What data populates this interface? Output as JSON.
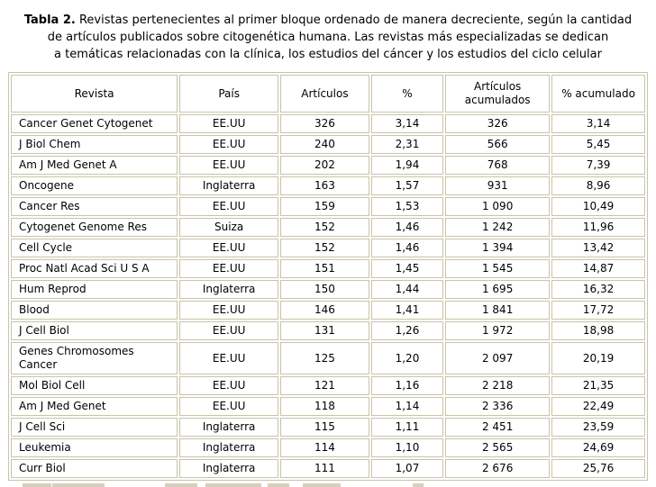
{
  "title": {
    "bold": "Tabla 2.",
    "line1": "Revistas pertenecientes al primer bloque ordenado de manera decreciente, según la cantidad",
    "line2": "de artículos publicados sobre citogenética humana. Las revistas más especializadas se dedican",
    "line3": "a temáticas relacionadas con la clínica, los estudios del cáncer y los estudios del ciclo celular"
  },
  "table": {
    "headers": [
      "Revista",
      "País",
      "Artículos",
      "%",
      "Artículos acumulados",
      "% acumulado"
    ],
    "rows": [
      [
        "Cancer Genet Cytogenet",
        "EE.UU",
        "326",
        "3,14",
        "326",
        "3,14"
      ],
      [
        "J Biol Chem",
        "EE.UU",
        "240",
        "2,31",
        "566",
        "5,45"
      ],
      [
        "Am J Med Genet A",
        "EE.UU",
        "202",
        "1,94",
        "768",
        "7,39"
      ],
      [
        "Oncogene",
        "Inglaterra",
        "163",
        "1,57",
        "931",
        "8,96"
      ],
      [
        "Cancer Res",
        "EE.UU",
        "159",
        "1,53",
        "1 090",
        "10,49"
      ],
      [
        "Cytogenet Genome Res",
        "Suiza",
        "152",
        "1,46",
        "1 242",
        "11,96"
      ],
      [
        "Cell Cycle",
        "EE.UU",
        "152",
        "1,46",
        "1 394",
        "13,42"
      ],
      [
        "Proc Natl Acad Sci U S A",
        "EE.UU",
        "151",
        "1,45",
        "1 545",
        "14,87"
      ],
      [
        "Hum Reprod",
        "Inglaterra",
        "150",
        "1,44",
        "1 695",
        "16,32"
      ],
      [
        "Blood",
        "EE.UU",
        "146",
        "1,41",
        "1 841",
        "17,72"
      ],
      [
        "J Cell Biol",
        "EE.UU",
        "131",
        "1,26",
        "1 972",
        "18,98"
      ],
      [
        "Genes Chromosomes Cancer",
        "EE.UU",
        "125",
        "1,20",
        "2 097",
        "20,19"
      ],
      [
        "Mol Biol Cell",
        "EE.UU",
        "121",
        "1,16",
        "2 218",
        "21,35"
      ],
      [
        "Am J Med Genet",
        "EE.UU",
        "118",
        "1,14",
        "2 336",
        "22,49"
      ],
      [
        "J Cell Sci",
        "Inglaterra",
        "115",
        "1,11",
        "2 451",
        "23,59"
      ],
      [
        "Leukemia",
        "Inglaterra",
        "114",
        "1,10",
        "2 565",
        "24,69"
      ],
      [
        "Curr Biol",
        "Inglaterra",
        "111",
        "1,07",
        "2 676",
        "25,76"
      ]
    ]
  },
  "colors": {
    "table_border": "#c9c3aa",
    "text": "#000000",
    "background": "#ffffff",
    "cutoff_artifact": "#d6cfbd"
  }
}
